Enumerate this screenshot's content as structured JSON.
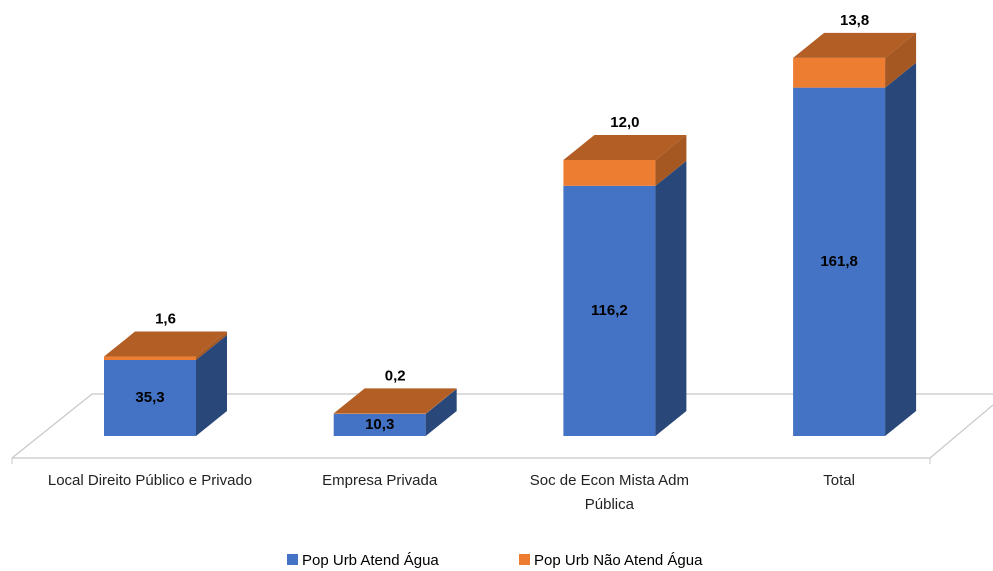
{
  "chart_data": {
    "type": "bar",
    "stacked": true,
    "three_d": true,
    "categories": [
      "Local Direito Público e Privado",
      "Empresa Privada",
      "Soc de Econ Mista Adm Pública",
      "Total"
    ],
    "series": [
      {
        "name": "Pop Urb Atend Água",
        "color": "#4472c4",
        "values": [
          35.3,
          10.3,
          116.2,
          161.8
        ],
        "value_labels": [
          "35,3",
          "10,3",
          "116,2",
          "161,8"
        ]
      },
      {
        "name": "Pop Urb Não Atend Água",
        "color": "#ed7d31",
        "values": [
          1.6,
          0.2,
          12.0,
          13.8
        ],
        "value_labels": [
          "1,6",
          "0,2",
          "12,0",
          "13,8"
        ]
      }
    ],
    "legend": "bottom"
  }
}
